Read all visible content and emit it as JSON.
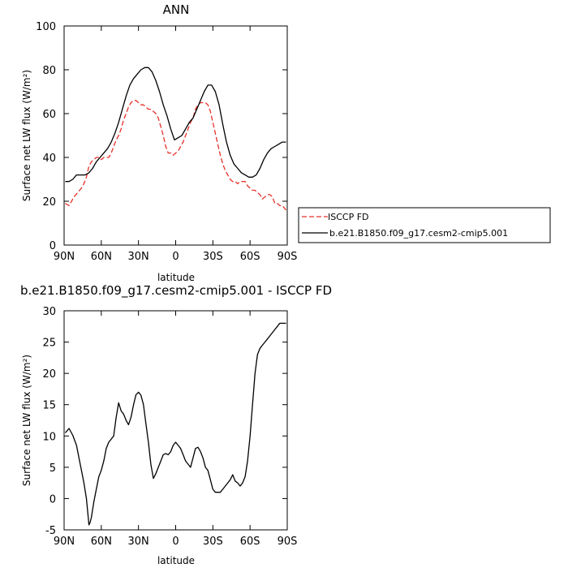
{
  "chart_data": [
    {
      "type": "line",
      "title": "ANN",
      "xlabel": "latitude",
      "ylabel": "Surface net LW flux (W/m²)",
      "ylim": [
        0,
        100
      ],
      "yticks": [
        "0",
        "20",
        "40",
        "60",
        "80",
        "100"
      ],
      "xlim": [
        90,
        -90
      ],
      "xticks": [
        "90N",
        "60N",
        "30N",
        "0",
        "30S",
        "60S",
        "90S"
      ],
      "grid": false,
      "legend_position": "right",
      "series": [
        {
          "name": "ISCCP FD",
          "color": "#e8302a",
          "dash": "dashed",
          "x": [
            89,
            86,
            84,
            82,
            79,
            76,
            74,
            72,
            70,
            68,
            66,
            64,
            62,
            60,
            58,
            56,
            54,
            52,
            50,
            48,
            46,
            44,
            42,
            40,
            38,
            36,
            34,
            32,
            30,
            28,
            26,
            24,
            22,
            20,
            18,
            16,
            14,
            12,
            10,
            8,
            6,
            4,
            2,
            0,
            -2,
            -4,
            -6,
            -8,
            -10,
            -12,
            -14,
            -16,
            -18,
            -20,
            -22,
            -24,
            -26,
            -28,
            -30,
            -32,
            -34,
            -36,
            -38,
            -40,
            -42,
            -44,
            -46,
            -48,
            -50,
            -52,
            -54,
            -56,
            -58,
            -60,
            -62,
            -64,
            -66,
            -68,
            -70,
            -72,
            -74,
            -76,
            -78,
            -80,
            -82,
            -84,
            -86,
            -89
          ],
          "y": [
            19,
            18,
            20,
            22,
            24,
            26,
            28,
            31,
            36,
            38,
            39,
            40,
            40,
            39,
            40,
            40,
            40,
            42,
            45,
            48,
            50,
            53,
            57,
            60,
            63,
            65,
            66,
            66,
            65,
            64,
            64,
            63,
            62,
            62,
            61,
            60,
            58,
            54,
            50,
            45,
            42,
            42,
            41,
            42,
            43,
            45,
            47,
            50,
            53,
            56,
            58,
            62,
            64,
            65,
            65,
            65,
            64,
            61,
            56,
            51,
            46,
            41,
            37,
            34,
            32,
            30,
            29,
            29,
            28,
            29,
            29,
            29,
            27,
            26,
            25,
            25,
            24,
            23,
            21,
            22,
            23,
            23,
            22,
            19,
            19,
            18,
            18,
            16
          ]
        },
        {
          "name": "b.e21.B1850.f09_g17.cesm2-cmip5.001",
          "color": "#000000",
          "dash": "solid",
          "x": [
            89,
            86,
            83,
            80,
            76,
            73,
            70,
            67,
            64,
            61,
            58,
            55,
            52,
            49,
            46,
            43,
            40,
            37,
            34,
            31,
            28,
            25,
            22,
            19,
            16,
            13,
            10,
            7,
            4,
            1,
            -2,
            -5,
            -8,
            -11,
            -14,
            -17,
            -20,
            -23,
            -26,
            -29,
            -32,
            -35,
            -38,
            -41,
            -44,
            -47,
            -50,
            -53,
            -56,
            -59,
            -62,
            -65,
            -68,
            -71,
            -74,
            -77,
            -80,
            -83,
            -86,
            -89
          ],
          "y": [
            29,
            29,
            30,
            32,
            32,
            32,
            33,
            35,
            38,
            40,
            42,
            44,
            47,
            51,
            56,
            62,
            68,
            73,
            76,
            78,
            80,
            81,
            81,
            79,
            75,
            70,
            64,
            59,
            53,
            48,
            49,
            50,
            53,
            56,
            58,
            62,
            66,
            70,
            73,
            73,
            70,
            64,
            55,
            47,
            41,
            37,
            35,
            33,
            32,
            31,
            31,
            32,
            35,
            39,
            42,
            44,
            45,
            46,
            47,
            47
          ]
        }
      ]
    },
    {
      "type": "line",
      "title": "b.e21.B1850.f09_g17.cesm2-cmip5.001 - ISCCP FD",
      "xlabel": "latitude",
      "ylabel": "Surface net LW flux (W/m²)",
      "ylim": [
        -5,
        30
      ],
      "yticks": [
        "-5",
        "0",
        "5",
        "10",
        "15",
        "20",
        "25",
        "30"
      ],
      "xlim": [
        90,
        -90
      ],
      "xticks": [
        "90N",
        "60N",
        "30N",
        "0",
        "30S",
        "60S",
        "90S"
      ],
      "grid": false,
      "series": [
        {
          "color": "#000000",
          "dash": "solid",
          "x": [
            89,
            86,
            83,
            80,
            78,
            76,
            74,
            72,
            71,
            70,
            69,
            68,
            66,
            64,
            62,
            60,
            58,
            56,
            54,
            52,
            50,
            48,
            46,
            44,
            42,
            40,
            38,
            36,
            34,
            32,
            30,
            28,
            26,
            24,
            22,
            20,
            18,
            16,
            14,
            12,
            10,
            8,
            6,
            4,
            2,
            0,
            -2,
            -4,
            -6,
            -8,
            -10,
            -12,
            -14,
            -16,
            -18,
            -20,
            -22,
            -24,
            -26,
            -28,
            -30,
            -32,
            -34,
            -36,
            -38,
            -40,
            -42,
            -44,
            -46,
            -48,
            -50,
            -52,
            -54,
            -56,
            -58,
            -60,
            -62,
            -64,
            -66,
            -68,
            -70,
            -72,
            -74,
            -76,
            -78,
            -80,
            -82,
            -84,
            -86,
            -88,
            -89
          ],
          "y": [
            10.5,
            11.2,
            10.1,
            8.5,
            6.5,
            4.5,
            2.5,
            0,
            -2,
            -4.2,
            -3.8,
            -3,
            -0.5,
            1.5,
            3.5,
            4.5,
            6,
            8,
            9,
            9.5,
            10,
            13,
            15.3,
            14,
            13.5,
            12.5,
            11.8,
            13,
            15,
            16.6,
            17,
            16.5,
            15,
            12,
            9,
            5.5,
            3.2,
            4,
            5,
            6,
            7,
            7.2,
            7,
            7.5,
            8.5,
            9,
            8.5,
            8,
            7,
            6,
            5.5,
            5,
            6.5,
            8,
            8.2,
            7.5,
            6.5,
            5,
            4.5,
            3,
            1.5,
            1,
            1,
            1,
            1.5,
            2,
            2.5,
            3,
            3.8,
            2.8,
            2.5,
            2,
            2.5,
            3.5,
            6,
            10,
            15,
            20,
            23,
            24,
            24.5,
            25,
            25.5,
            26,
            26.5,
            27,
            27.5,
            28,
            28,
            28,
            28
          ]
        }
      ]
    }
  ]
}
